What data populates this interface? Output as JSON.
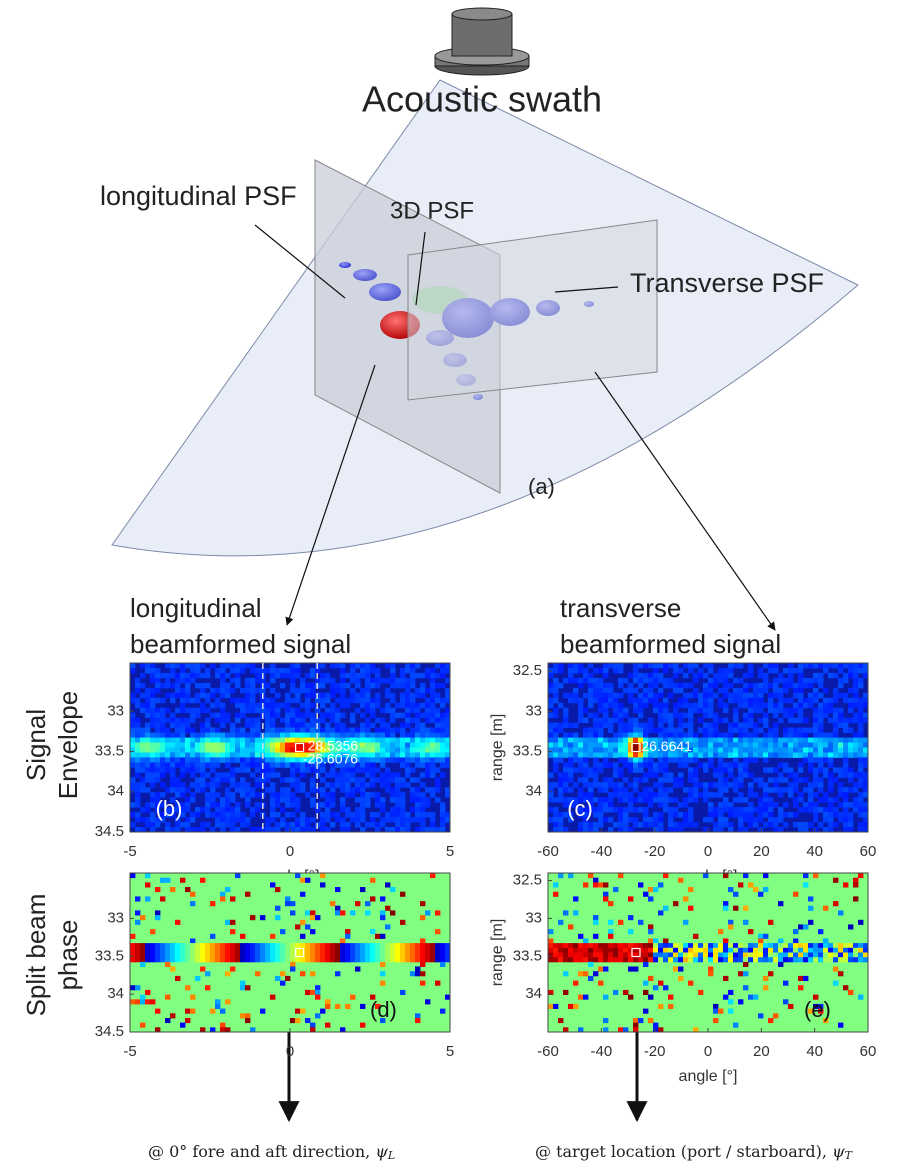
{
  "figure": {
    "title": "Acoustic swath",
    "diagram_labels": [
      "longitudinal PSF",
      "3D PSF",
      "Transverse PSF",
      "(a)"
    ],
    "column_headers": [
      [
        "longitudinal",
        "beamformed signal"
      ],
      [
        "transverse",
        "beamformed signal"
      ]
    ],
    "row_headers": [
      [
        "Signal",
        "Envelope"
      ],
      [
        "Split beam",
        "phase"
      ]
    ],
    "footnotes": [
      "@ 0° fore and aft direction, ",
      "@ target location (port / starboard), "
    ],
    "footnote_symbols": [
      [
        "ψ",
        "L"
      ],
      [
        "ψ",
        "T"
      ]
    ]
  },
  "panels": [
    {
      "kind": "envelope",
      "label": "(b)",
      "xlabel": "angle [°]",
      "xlim": [
        -5,
        5
      ],
      "xticks": [
        -5,
        0,
        5
      ],
      "ylim": [
        32.4,
        34.5
      ],
      "yticks": [
        33,
        33.5,
        34,
        34.5
      ],
      "guides": [
        -0.85,
        0.85
      ],
      "annotations": [
        "28.5356",
        "-26.6076"
      ]
    },
    {
      "kind": "envelope",
      "label": "(c)",
      "xlabel": "angle [°]",
      "ylabel": "range [m]",
      "xlim": [
        -60,
        60
      ],
      "xticks": [
        -60,
        -40,
        -20,
        0,
        20,
        40,
        60
      ],
      "ylim": [
        32.4,
        34.5
      ],
      "yticks": [
        32.5,
        33,
        33.5,
        34
      ],
      "annotations": [
        "26.6641"
      ]
    },
    {
      "kind": "phase",
      "label": "(d)",
      "xlim": [
        -5,
        5
      ],
      "xticks": [
        -5,
        0,
        5
      ],
      "ylim": [
        32.4,
        34.5
      ],
      "yticks": [
        33,
        33.5,
        34,
        34.5
      ]
    },
    {
      "kind": "phase",
      "label": "(e)",
      "xlabel": "angle [°]",
      "ylabel": "range [m]",
      "xlim": [
        -60,
        60
      ],
      "xticks": [
        -60,
        -40,
        -20,
        0,
        20,
        40,
        60
      ],
      "ylim": [
        32.4,
        34.5
      ],
      "yticks": [
        32.5,
        33,
        33.5,
        34
      ]
    }
  ]
}
